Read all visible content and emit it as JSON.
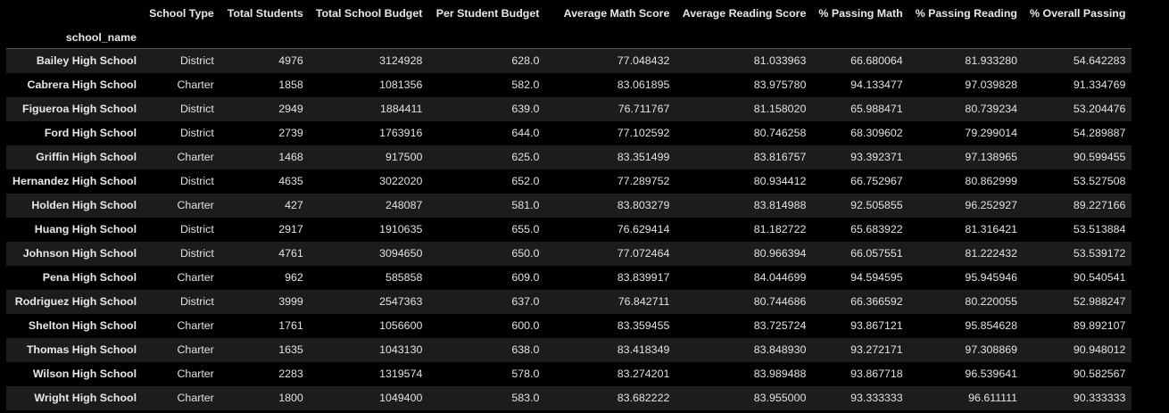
{
  "table": {
    "index_name": "school_name",
    "columns": [
      "School Type",
      "Total Students",
      "Total School Budget",
      "Per Student Budget",
      "Average Math Score",
      "Average Reading Score",
      "% Passing Math",
      "% Passing Reading",
      "% Overall Passing"
    ],
    "rows": [
      {
        "name": "Bailey High School",
        "cells": [
          "District",
          "4976",
          "3124928",
          "628.0",
          "77.048432",
          "81.033963",
          "66.680064",
          "81.933280",
          "54.642283"
        ]
      },
      {
        "name": "Cabrera High School",
        "cells": [
          "Charter",
          "1858",
          "1081356",
          "582.0",
          "83.061895",
          "83.975780",
          "94.133477",
          "97.039828",
          "91.334769"
        ]
      },
      {
        "name": "Figueroa High School",
        "cells": [
          "District",
          "2949",
          "1884411",
          "639.0",
          "76.711767",
          "81.158020",
          "65.988471",
          "80.739234",
          "53.204476"
        ]
      },
      {
        "name": "Ford High School",
        "cells": [
          "District",
          "2739",
          "1763916",
          "644.0",
          "77.102592",
          "80.746258",
          "68.309602",
          "79.299014",
          "54.289887"
        ]
      },
      {
        "name": "Griffin High School",
        "cells": [
          "Charter",
          "1468",
          "917500",
          "625.0",
          "83.351499",
          "83.816757",
          "93.392371",
          "97.138965",
          "90.599455"
        ]
      },
      {
        "name": "Hernandez High School",
        "cells": [
          "District",
          "4635",
          "3022020",
          "652.0",
          "77.289752",
          "80.934412",
          "66.752967",
          "80.862999",
          "53.527508"
        ]
      },
      {
        "name": "Holden High School",
        "cells": [
          "Charter",
          "427",
          "248087",
          "581.0",
          "83.803279",
          "83.814988",
          "92.505855",
          "96.252927",
          "89.227166"
        ]
      },
      {
        "name": "Huang High School",
        "cells": [
          "District",
          "2917",
          "1910635",
          "655.0",
          "76.629414",
          "81.182722",
          "65.683922",
          "81.316421",
          "53.513884"
        ]
      },
      {
        "name": "Johnson High School",
        "cells": [
          "District",
          "4761",
          "3094650",
          "650.0",
          "77.072464",
          "80.966394",
          "66.057551",
          "81.222432",
          "53.539172"
        ]
      },
      {
        "name": "Pena High School",
        "cells": [
          "Charter",
          "962",
          "585858",
          "609.0",
          "83.839917",
          "84.044699",
          "94.594595",
          "95.945946",
          "90.540541"
        ]
      },
      {
        "name": "Rodriguez High School",
        "cells": [
          "District",
          "3999",
          "2547363",
          "637.0",
          "76.842711",
          "80.744686",
          "66.366592",
          "80.220055",
          "52.988247"
        ]
      },
      {
        "name": "Shelton High School",
        "cells": [
          "Charter",
          "1761",
          "1056600",
          "600.0",
          "83.359455",
          "83.725724",
          "93.867121",
          "95.854628",
          "89.892107"
        ]
      },
      {
        "name": "Thomas High School",
        "cells": [
          "Charter",
          "1635",
          "1043130",
          "638.0",
          "83.418349",
          "83.848930",
          "93.272171",
          "97.308869",
          "90.948012"
        ]
      },
      {
        "name": "Wilson High School",
        "cells": [
          "Charter",
          "2283",
          "1319574",
          "578.0",
          "83.274201",
          "83.989488",
          "93.867718",
          "96.539641",
          "90.582567"
        ]
      },
      {
        "name": "Wright High School",
        "cells": [
          "Charter",
          "1800",
          "1049400",
          "583.0",
          "83.682222",
          "83.955000",
          "93.333333",
          "96.611111",
          "90.333333"
        ]
      }
    ]
  }
}
